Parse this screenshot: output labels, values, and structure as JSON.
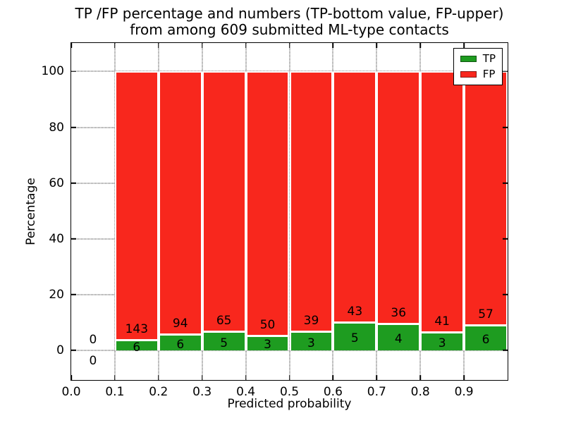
{
  "title": {
    "line1": "TP /FP percentage and numbers (TP-bottom value, FP-upper)",
    "line2": "from among 609 submitted ML-type contacts"
  },
  "axes": {
    "xlabel": "Predicted probability",
    "ylabel": "Percentage",
    "xlim": [
      0.0,
      1.0
    ],
    "ylim": [
      -10.6,
      110.2
    ],
    "x_ticks": [
      0.0,
      0.1,
      0.2,
      0.3,
      0.4,
      0.5,
      0.6,
      0.7,
      0.8,
      0.9
    ],
    "x_tick_labels": [
      "0.0",
      "0.1",
      "0.2",
      "0.3",
      "0.4",
      "0.5",
      "0.6",
      "0.7",
      "0.8",
      "0.9"
    ],
    "y_ticks": [
      0,
      20,
      40,
      60,
      80,
      100
    ],
    "y_tick_labels": [
      "0",
      "20",
      "40",
      "60",
      "80",
      "100"
    ],
    "grid_style": "dotted"
  },
  "legend": {
    "position": "upper-right",
    "entries": [
      {
        "label": "TP",
        "color": "#1e9c20"
      },
      {
        "label": "FP",
        "color": "#f8271d"
      }
    ]
  },
  "chart_data": {
    "type": "bar",
    "stacked": true,
    "normalized": "each bar stacks to 100%",
    "total_contacts": 609,
    "colors": {
      "tp": "#1e9c20",
      "fp": "#f8271d"
    },
    "bins": [
      {
        "range": [
          0.0,
          0.1
        ],
        "tp": 0,
        "fp": 0,
        "tp_pct": null
      },
      {
        "range": [
          0.1,
          0.2
        ],
        "tp": 6,
        "fp": 143,
        "tp_pct": 4.0
      },
      {
        "range": [
          0.2,
          0.3
        ],
        "tp": 6,
        "fp": 94,
        "tp_pct": 6.0
      },
      {
        "range": [
          0.3,
          0.4
        ],
        "tp": 5,
        "fp": 65,
        "tp_pct": 7.1
      },
      {
        "range": [
          0.4,
          0.5
        ],
        "tp": 3,
        "fp": 50,
        "tp_pct": 5.7
      },
      {
        "range": [
          0.5,
          0.6
        ],
        "tp": 3,
        "fp": 39,
        "tp_pct": 7.1
      },
      {
        "range": [
          0.6,
          0.7
        ],
        "tp": 5,
        "fp": 43,
        "tp_pct": 10.4
      },
      {
        "range": [
          0.7,
          0.8
        ],
        "tp": 4,
        "fp": 36,
        "tp_pct": 10.0
      },
      {
        "range": [
          0.8,
          0.9
        ],
        "tp": 3,
        "fp": 41,
        "tp_pct": 6.8
      },
      {
        "range": [
          0.9,
          1.0
        ],
        "tp": 6,
        "fp": 57,
        "tp_pct": 9.5
      }
    ]
  }
}
